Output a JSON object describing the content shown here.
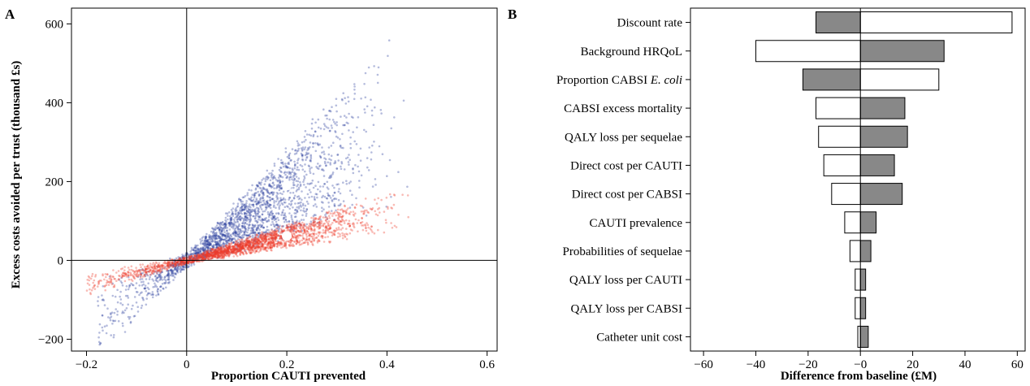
{
  "chart_data": [
    {
      "type": "scatter",
      "panel_label": "A",
      "xlabel": "Proportion CAUTI prevented",
      "ylabel": "Excess costs avoided per trust (thousand £s)",
      "xlim": [
        -0.23,
        0.62
      ],
      "ylim": [
        -230,
        640
      ],
      "xticks": [
        -0.2,
        0,
        0.2,
        0.4,
        0.6
      ],
      "xtick_labels": [
        "−0.2",
        "0",
        "0.2",
        "0.4",
        "0.6"
      ],
      "yticks": [
        -200,
        0,
        200,
        400,
        600
      ],
      "ytick_labels": [
        "−200",
        "0",
        "200",
        "400",
        "600"
      ],
      "reference_lines": {
        "x": 0,
        "y": 0
      },
      "grid": false,
      "series": [
        {
          "color": "#2b3f9e",
          "opacity": 0.35,
          "slope_cloud": {
            "slope_min": 350,
            "slope_max": 1350,
            "x_range": [
              -0.18,
              0.46
            ],
            "points": 2200
          },
          "mean_point": {
            "x": 0.2,
            "y": 190
          }
        },
        {
          "color": "#ef3b2c",
          "opacity": 0.35,
          "slope_cloud": {
            "slope_min": 180,
            "slope_max": 420,
            "x_range": [
              -0.2,
              0.48
            ],
            "points": 2200
          },
          "mean_point": {
            "x": 0.2,
            "y": 62
          }
        }
      ]
    },
    {
      "type": "bar",
      "subtype": "tornado",
      "panel_label": "B",
      "xlabel": "Difference from baseline (£M)",
      "xlim": [
        -65,
        63
      ],
      "xticks": [
        -60,
        -40,
        -20,
        0,
        20,
        40,
        60
      ],
      "xtick_labels": [
        "−60",
        "−40",
        "−20",
        "−0",
        "20",
        "40",
        "60"
      ],
      "baseline": 0,
      "colors": {
        "low": "#ffffff",
        "high": "#888888",
        "edge": "#000000"
      },
      "categories": [
        {
          "label": "Discount rate",
          "italic_suffix": ""
        },
        {
          "label": "Background HRQoL",
          "italic_suffix": ""
        },
        {
          "label": "Proportion CABSI ",
          "italic_suffix": "E. coli"
        },
        {
          "label": "CABSI excess mortality",
          "italic_suffix": ""
        },
        {
          "label": "QALY loss per sequelae",
          "italic_suffix": ""
        },
        {
          "label": "Direct cost per CAUTI",
          "italic_suffix": ""
        },
        {
          "label": "Direct cost per CABSI",
          "italic_suffix": ""
        },
        {
          "label": "CAUTI prevalence",
          "italic_suffix": ""
        },
        {
          "label": "Probabilities of sequelae",
          "italic_suffix": ""
        },
        {
          "label": "QALY loss per CAUTI",
          "italic_suffix": ""
        },
        {
          "label": "QALY loss per CABSI",
          "italic_suffix": ""
        },
        {
          "label": "Catheter unit cost",
          "italic_suffix": ""
        }
      ],
      "bars": [
        {
          "white": [
            0,
            58
          ],
          "grey": [
            -17,
            0
          ]
        },
        {
          "white": [
            -40,
            0
          ],
          "grey": [
            0,
            32
          ]
        },
        {
          "white": [
            0,
            30
          ],
          "grey": [
            -22,
            0
          ]
        },
        {
          "white": [
            -17,
            0
          ],
          "grey": [
            0,
            17
          ]
        },
        {
          "white": [
            -16,
            0
          ],
          "grey": [
            0,
            18
          ]
        },
        {
          "white": [
            -14,
            0
          ],
          "grey": [
            0,
            13
          ]
        },
        {
          "white": [
            -11,
            0
          ],
          "grey": [
            0,
            16
          ]
        },
        {
          "white": [
            -6,
            0
          ],
          "grey": [
            0,
            6
          ]
        },
        {
          "white": [
            -4,
            0
          ],
          "grey": [
            0,
            4
          ]
        },
        {
          "white": [
            -2,
            0
          ],
          "grey": [
            0,
            2
          ]
        },
        {
          "white": [
            -2,
            0
          ],
          "grey": [
            0,
            2
          ]
        },
        {
          "white": [
            -1,
            0
          ],
          "grey": [
            0,
            3
          ]
        }
      ]
    }
  ]
}
